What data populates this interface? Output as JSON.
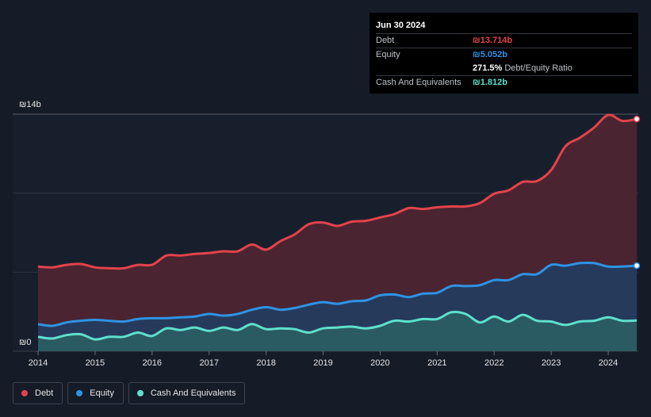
{
  "tooltip": {
    "date": "Jun 30 2024",
    "debt_label": "Debt",
    "debt_value": "₪13.714b",
    "equity_label": "Equity",
    "equity_value": "₪5.052b",
    "ratio_value": "271.5%",
    "ratio_label": "Debt/Equity Ratio",
    "cash_label": "Cash And Equivalents",
    "cash_value": "₪1.812b"
  },
  "legend": {
    "debt": "Debt",
    "equity": "Equity",
    "cash": "Cash And Equivalents"
  },
  "colors": {
    "debt": "#e3434b",
    "equity": "#2e93e4",
    "cash": "#5ee0cc",
    "background": "#151b27"
  },
  "chart_data": {
    "type": "area",
    "title": "",
    "xlabel": "",
    "ylabel": "",
    "y_top_label": "₪14b",
    "y_bottom_label": "₪0",
    "ylim": [
      0,
      14
    ],
    "xlim": [
      2014,
      2024.5
    ],
    "x_ticks": [
      "2014",
      "2015",
      "2016",
      "2017",
      "2018",
      "2019",
      "2020",
      "2021",
      "2022",
      "2023",
      "2024"
    ],
    "x": [
      2014.0,
      2014.25,
      2014.5,
      2014.75,
      2015.0,
      2015.25,
      2015.5,
      2015.75,
      2016.0,
      2016.25,
      2016.5,
      2016.75,
      2017.0,
      2017.25,
      2017.5,
      2017.75,
      2018.0,
      2018.25,
      2018.5,
      2018.75,
      2019.0,
      2019.25,
      2019.5,
      2019.75,
      2020.0,
      2020.25,
      2020.5,
      2020.75,
      2021.0,
      2021.25,
      2021.5,
      2021.75,
      2022.0,
      2022.25,
      2022.5,
      2022.75,
      2023.0,
      2023.25,
      2023.5,
      2023.75,
      2024.0,
      2024.25,
      2024.5
    ],
    "series": [
      {
        "name": "Debt",
        "values": [
          5.0,
          4.95,
          5.1,
          5.15,
          4.95,
          4.9,
          4.9,
          5.1,
          5.1,
          5.65,
          5.65,
          5.75,
          5.8,
          5.9,
          5.9,
          6.3,
          6.0,
          6.5,
          6.9,
          7.5,
          7.6,
          7.4,
          7.65,
          7.7,
          7.9,
          8.1,
          8.45,
          8.4,
          8.5,
          8.55,
          8.55,
          8.75,
          9.3,
          9.5,
          10.0,
          10.05,
          10.7,
          12.1,
          12.6,
          13.2,
          13.95,
          13.6,
          13.714
        ]
      },
      {
        "name": "Equity",
        "values": [
          1.6,
          1.5,
          1.7,
          1.8,
          1.85,
          1.8,
          1.75,
          1.9,
          1.95,
          1.95,
          2.0,
          2.05,
          2.2,
          2.1,
          2.2,
          2.45,
          2.6,
          2.45,
          2.55,
          2.75,
          2.9,
          2.8,
          2.95,
          3.0,
          3.3,
          3.35,
          3.2,
          3.4,
          3.45,
          3.85,
          3.85,
          3.9,
          4.2,
          4.2,
          4.55,
          4.55,
          5.1,
          5.05,
          5.2,
          5.2,
          5.0,
          5.0,
          5.052
        ]
      },
      {
        "name": "Cash And Equivalents",
        "values": [
          0.85,
          0.75,
          0.95,
          1.0,
          0.7,
          0.85,
          0.85,
          1.1,
          0.9,
          1.35,
          1.25,
          1.4,
          1.2,
          1.4,
          1.25,
          1.6,
          1.3,
          1.35,
          1.3,
          1.1,
          1.35,
          1.4,
          1.45,
          1.35,
          1.5,
          1.8,
          1.75,
          1.9,
          1.9,
          2.3,
          2.2,
          1.7,
          2.05,
          1.75,
          2.15,
          1.8,
          1.75,
          1.55,
          1.75,
          1.8,
          2.0,
          1.8,
          1.812
        ]
      }
    ]
  }
}
